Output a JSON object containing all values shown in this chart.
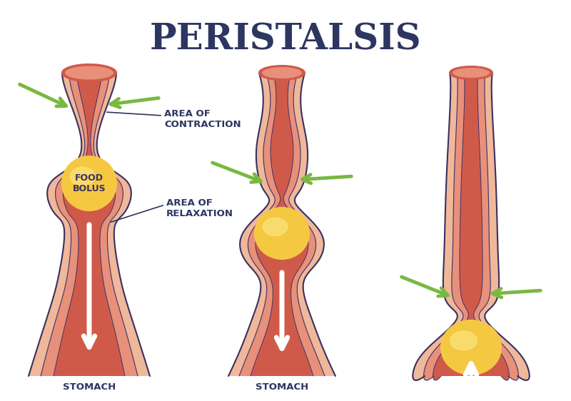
{
  "title": "PERISTALSIS",
  "title_color": "#2d3561",
  "title_fontsize": 36,
  "bg_color": "#ffffff",
  "labels": {
    "area_of_contraction": "AREA OF\nCONTRACTION",
    "area_of_relaxation": "AREA OF\nRELAXATION",
    "food_bolus": "FOOD\nBOLUS",
    "stomach1": "STOMACH",
    "stomach2": "STOMACH"
  },
  "label_color": "#2d3561",
  "label_fontsize": 9.5,
  "colors": {
    "outer_tissue": "#f0b89a",
    "mid_tissue": "#e8907a",
    "inner_tissue": "#d05a4a",
    "bolus_main": "#f5c842",
    "bolus_highlight": "#fde888",
    "arrow_green": "#7ab840",
    "arrow_green_dark": "#5a9020",
    "arrow_white_fill": "#ffffff",
    "arrow_white_edge": "#cccccc",
    "outline": "#3a3060"
  }
}
